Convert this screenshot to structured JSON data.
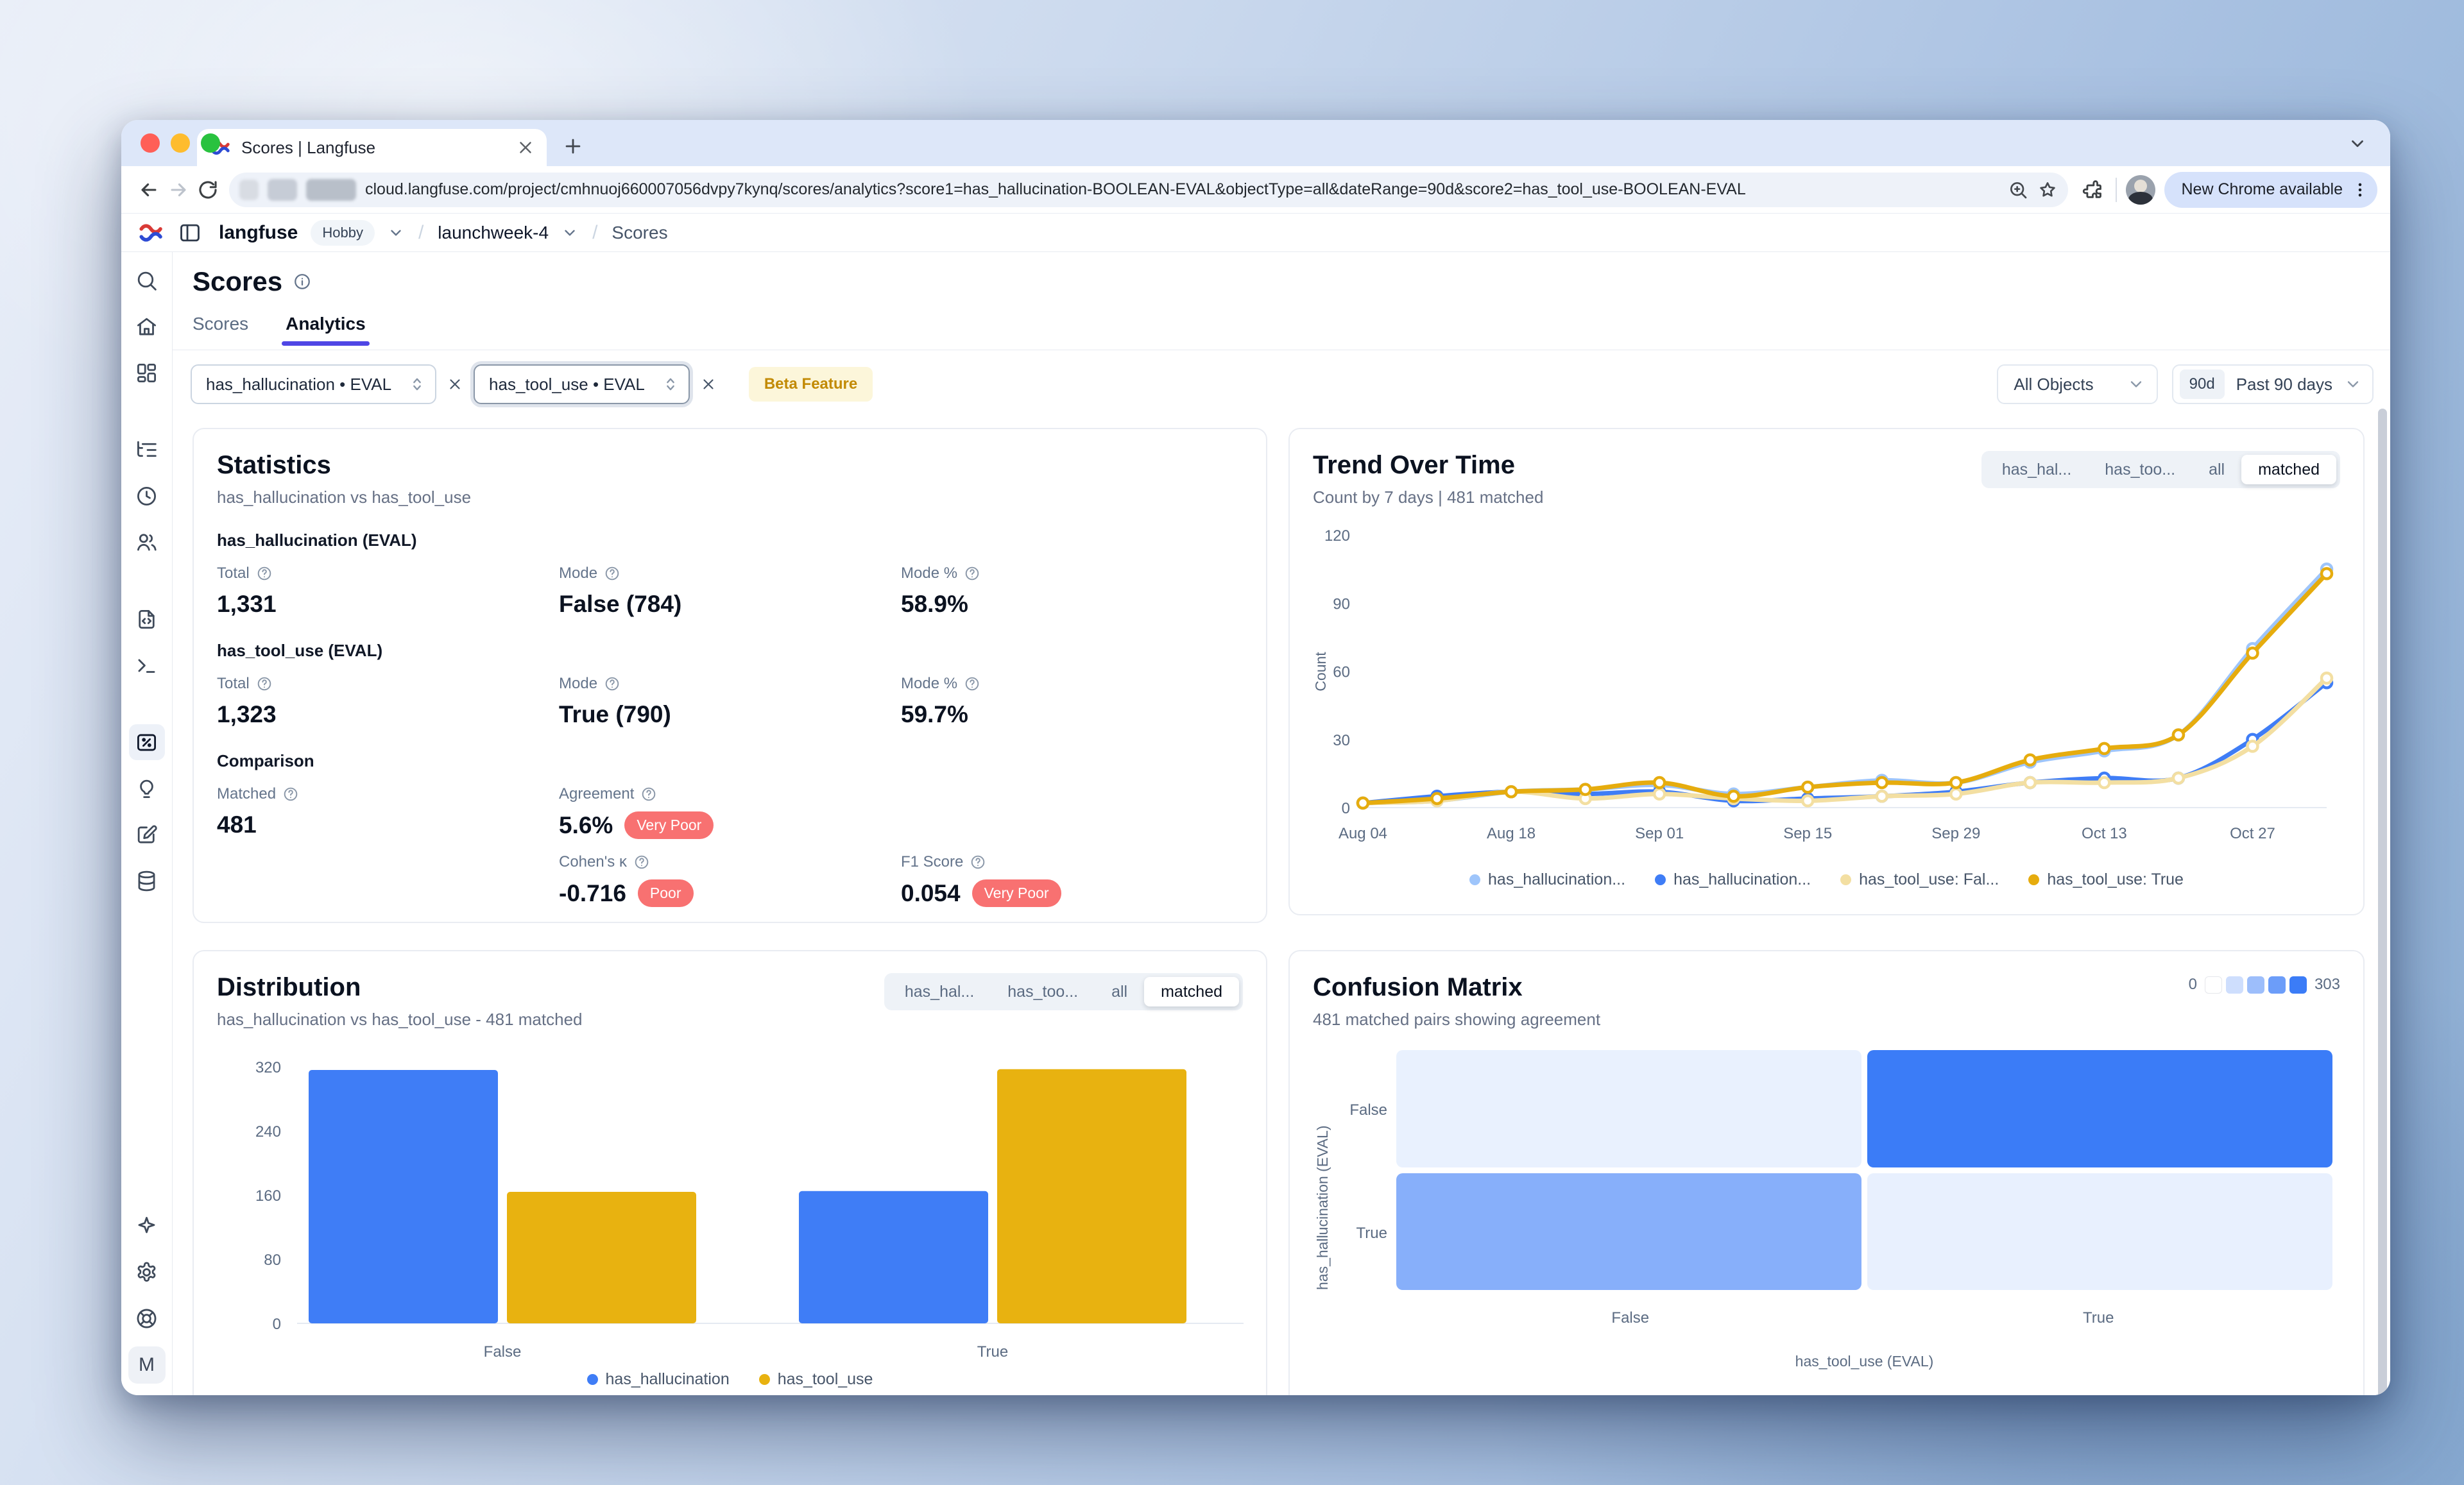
{
  "browser": {
    "tab_title": "Scores | Langfuse",
    "url": "cloud.langfuse.com/project/cmhnuoj660007056dvpy7kynq/scores/analytics?score1=has_hallucination-BOOLEAN-EVAL&objectType=all&dateRange=90d&score2=has_tool_use-BOOLEAN-EVAL",
    "update_button": "New Chrome available"
  },
  "app": {
    "header": {
      "org": "langfuse",
      "plan_badge": "Hobby",
      "project": "launchweek-4",
      "page": "Scores"
    },
    "sidebar": {
      "top": [
        {
          "icon": "search",
          "group": 1
        },
        {
          "icon": "home",
          "group": 1
        },
        {
          "icon": "dashboards",
          "group": 1
        },
        {
          "icon": "tracing",
          "group": 2
        },
        {
          "icon": "sessions",
          "group": 2
        },
        {
          "icon": "users",
          "group": 2
        },
        {
          "icon": "prompts",
          "group": 3
        },
        {
          "icon": "playground",
          "group": 3
        },
        {
          "icon": "scores",
          "group": 4,
          "active": true
        },
        {
          "icon": "evals",
          "group": 4
        },
        {
          "icon": "annotation",
          "group": 4
        },
        {
          "icon": "datasets",
          "group": 4
        }
      ],
      "bottom": [
        {
          "icon": "ask-ai"
        },
        {
          "icon": "settings"
        },
        {
          "icon": "support"
        }
      ],
      "avatar_label": "M"
    },
    "page": {
      "title": "Scores",
      "tabs": [
        {
          "label": "Scores",
          "active": false
        },
        {
          "label": "Analytics",
          "active": true
        }
      ],
      "filters": {
        "score1": "has_hallucination • EVAL",
        "score2": "has_tool_use • EVAL",
        "beta_badge": "Beta Feature",
        "objects": "All Objects",
        "range_short": "90d",
        "range_label": "Past 90 days"
      }
    }
  },
  "statistics": {
    "title": "Statistics",
    "subtitle": "has_hallucination vs has_tool_use",
    "badge_color": "#f87171",
    "sections": [
      {
        "heading": "has_hallucination (EVAL)",
        "rows": [
          [
            {
              "label": "Total",
              "value": "1,331"
            },
            {
              "label": "Mode",
              "value": "False (784)"
            },
            {
              "label": "Mode %",
              "value": "58.9%"
            }
          ]
        ]
      },
      {
        "heading": "has_tool_use (EVAL)",
        "rows": [
          [
            {
              "label": "Total",
              "value": "1,323"
            },
            {
              "label": "Mode",
              "value": "True (790)"
            },
            {
              "label": "Mode %",
              "value": "59.7%"
            }
          ]
        ]
      },
      {
        "heading": "Comparison",
        "rows": [
          [
            {
              "label": "Matched",
              "value": "481"
            },
            {
              "label": "Agreement",
              "value": "5.6%",
              "badge": "Very Poor"
            },
            null
          ],
          [
            null,
            {
              "label": "Cohen's κ",
              "value": "-0.716",
              "badge": "Poor"
            },
            {
              "label": "F1 Score",
              "value": "0.054",
              "badge": "Very Poor"
            }
          ]
        ]
      }
    ]
  },
  "trend": {
    "title": "Trend Over Time",
    "subtitle": "Count by 7 days | 481 matched",
    "controls": [
      {
        "label": "has_hal...",
        "active": false
      },
      {
        "label": "has_too...",
        "active": false
      },
      {
        "label": "all",
        "active": false
      },
      {
        "label": "matched",
        "active": true
      }
    ]
  },
  "distribution": {
    "title": "Distribution",
    "subtitle": "has_hallucination vs has_tool_use - 481 matched",
    "controls": [
      {
        "label": "has_hal...",
        "active": false
      },
      {
        "label": "has_too...",
        "active": false
      },
      {
        "label": "all",
        "active": false
      },
      {
        "label": "matched",
        "active": true
      }
    ]
  },
  "confusion": {
    "title": "Confusion Matrix",
    "subtitle": "481 matched pairs showing agreement",
    "scale_min": "0",
    "scale_max": "303"
  },
  "chart_data": [
    {
      "type": "line",
      "title": "Trend Over Time",
      "ylabel": "Count",
      "ylim": [
        0,
        120
      ],
      "yticks": [
        0,
        30,
        60,
        90,
        120
      ],
      "x": [
        "Aug 04",
        "Aug 11",
        "Aug 18",
        "Aug 25",
        "Sep 01",
        "Sep 08",
        "Sep 15",
        "Sep 22",
        "Sep 29",
        "Oct 06",
        "Oct 13",
        "Oct 20",
        "Oct 27",
        "Nov 03"
      ],
      "x_ticks_shown": [
        "Aug 04",
        "Aug 18",
        "Sep 01",
        "Sep 15",
        "Sep 29",
        "Oct 13",
        "Oct 27"
      ],
      "legend_position": "bottom",
      "series": [
        {
          "name": "has_hallucination: False",
          "legend_label": "has_hallucination...",
          "color": "#9ec5fb",
          "values": [
            2,
            3,
            7,
            8,
            10,
            6,
            9,
            12,
            11,
            20,
            25,
            32,
            70,
            105
          ]
        },
        {
          "name": "has_hallucination: True",
          "legend_label": "has_hallucination...",
          "color": "#3f7df6",
          "values": [
            2,
            5,
            7,
            6,
            7,
            3,
            4,
            5,
            7,
            11,
            13,
            13,
            30,
            55
          ]
        },
        {
          "name": "has_tool_use: False",
          "legend_label": "has_tool_use: Fal...",
          "color": "#f3dfa2",
          "values": [
            2,
            3,
            7,
            4,
            6,
            4,
            3,
            5,
            6,
            11,
            11,
            13,
            27,
            57
          ]
        },
        {
          "name": "has_tool_use: True",
          "legend_label": "has_tool_use: True",
          "color": "#e6ac0e",
          "values": [
            2,
            4,
            7,
            8,
            11,
            5,
            9,
            11,
            11,
            21,
            26,
            32,
            68,
            103
          ]
        }
      ]
    },
    {
      "type": "bar",
      "title": "Distribution",
      "categories": [
        "False",
        "True"
      ],
      "ylim": [
        0,
        320
      ],
      "yticks": [
        0,
        80,
        160,
        240,
        320
      ],
      "legend_position": "bottom",
      "series": [
        {
          "name": "has_hallucination",
          "color": "#3f7df6",
          "values": [
            316,
            165
          ]
        },
        {
          "name": "has_tool_use",
          "color": "#e8b210",
          "values": [
            164,
            317
          ]
        }
      ]
    },
    {
      "type": "heatmap",
      "title": "Confusion Matrix",
      "rows": [
        "False",
        "True"
      ],
      "cols": [
        "False",
        "True"
      ],
      "row_axis_label": "has_hallucination (EVAL)",
      "col_axis_label": "has_tool_use (EVAL)",
      "values": [
        [
          13,
          303
        ],
        [
          151,
          14
        ]
      ],
      "min": 0,
      "max": 303,
      "base_color": "#3b7cf7"
    }
  ]
}
